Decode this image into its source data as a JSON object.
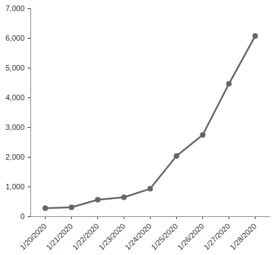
{
  "chart_data": {
    "type": "line",
    "categories": [
      "1/20/2020",
      "1/21/2020",
      "1/22/2020",
      "1/23/2020",
      "1/24/2020",
      "1/25/2020",
      "1/26/2020",
      "1/27/2020",
      "1/28/2020"
    ],
    "values": [
      282,
      314,
      571,
      650,
      940,
      2040,
      2750,
      4470,
      6080
    ],
    "color": "#666666",
    "marker": "circle",
    "line_style": "solid",
    "grid": false,
    "ylim": [
      0,
      7000
    ],
    "yticks": [
      0,
      {
        "value": 1000,
        "label": "1,000"
      },
      {
        "value": 2000,
        "label": "2,000"
      },
      {
        "value": 3000,
        "label": "3,000"
      },
      {
        "value": 4000,
        "label": "4,000"
      },
      {
        "value": 5000,
        "label": "5,000"
      },
      {
        "value": 6000,
        "label": "6,000"
      },
      {
        "value": 7000,
        "label": "7,000"
      }
    ]
  }
}
